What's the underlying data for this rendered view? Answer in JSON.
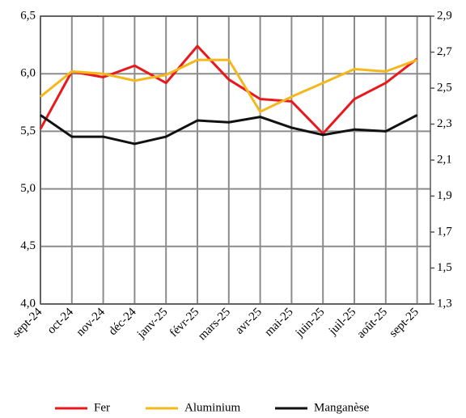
{
  "chart_data": {
    "type": "line",
    "categories": [
      "sept-24",
      "oct-24",
      "nov-24",
      "déc-24",
      "janv-25",
      "févr-25",
      "mars-25",
      "avr-25",
      "mai-25",
      "juin-25",
      "juil-25",
      "août-25",
      "sept-25"
    ],
    "series": [
      {
        "name": "Fer",
        "color": "#e8191c",
        "values": [
          5.52,
          6.02,
          5.97,
          6.07,
          5.92,
          6.24,
          5.95,
          5.78,
          5.76,
          5.48,
          5.78,
          5.92,
          6.13
        ]
      },
      {
        "name": "Aluminium",
        "color": "#f5b81c",
        "values": [
          5.8,
          6.02,
          6.0,
          5.94,
          5.99,
          6.12,
          6.12,
          5.67,
          5.8,
          5.92,
          6.04,
          6.02,
          6.12
        ]
      },
      {
        "name": "Manganèse",
        "color": "#111111",
        "axis": "y2",
        "values": [
          2.35,
          2.23,
          2.23,
          2.19,
          2.23,
          2.32,
          2.31,
          2.34,
          2.28,
          2.24,
          2.27,
          2.26,
          2.35
        ]
      }
    ],
    "ylim": [
      4.0,
      6.5
    ],
    "yticks": [
      {
        "value": 4.0,
        "label": "4,0"
      },
      {
        "value": 4.5,
        "label": "4,5"
      },
      {
        "value": 5.0,
        "label": "5,0"
      },
      {
        "value": 5.5,
        "label": "5,5"
      },
      {
        "value": 6.0,
        "label": "6,0"
      },
      {
        "value": 6.5,
        "label": "6,5"
      }
    ],
    "y2lim": [
      1.3,
      2.9
    ],
    "y2ticks": [
      {
        "value": 1.3,
        "label": "1,3"
      },
      {
        "value": 1.5,
        "label": "1,5"
      },
      {
        "value": 1.7,
        "label": "1,7"
      },
      {
        "value": 1.9,
        "label": "1,9"
      },
      {
        "value": 2.1,
        "label": "2,1"
      },
      {
        "value": 2.3,
        "label": "2,3"
      },
      {
        "value": 2.5,
        "label": "2,5"
      },
      {
        "value": 2.7,
        "label": "2,7"
      },
      {
        "value": 2.9,
        "label": "2,9"
      }
    ],
    "grid": true,
    "legend": "bottom"
  }
}
